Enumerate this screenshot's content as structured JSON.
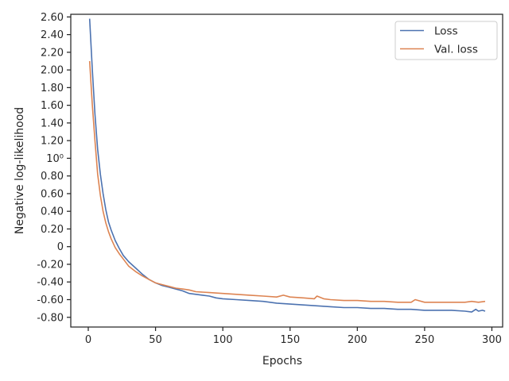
{
  "chart_data": {
    "type": "line",
    "xlabel": "Epochs",
    "ylabel": "Negative log-likelihood",
    "xlim": [
      -13,
      308
    ],
    "ylim": [
      -0.91,
      2.63
    ],
    "grid": false,
    "legend_position": "top-right",
    "x_ticks": [
      {
        "value": 0,
        "label": "0"
      },
      {
        "value": 50,
        "label": "50"
      },
      {
        "value": 100,
        "label": "100"
      },
      {
        "value": 150,
        "label": "150"
      },
      {
        "value": 200,
        "label": "200"
      },
      {
        "value": 250,
        "label": "250"
      },
      {
        "value": 300,
        "label": "300"
      }
    ],
    "y_ticks": [
      {
        "value": -0.8,
        "label": "-0.80"
      },
      {
        "value": -0.6,
        "label": "-0.60"
      },
      {
        "value": -0.4,
        "label": "-0.40"
      },
      {
        "value": -0.2,
        "label": "-0.20"
      },
      {
        "value": 0,
        "label": "0"
      },
      {
        "value": 0.2,
        "label": "0.20"
      },
      {
        "value": 0.4,
        "label": "0.40"
      },
      {
        "value": 0.6,
        "label": "0.60"
      },
      {
        "value": 0.8,
        "label": "0.80"
      },
      {
        "value": 1.0,
        "label": "10⁰"
      },
      {
        "value": 1.2,
        "label": "1.20"
      },
      {
        "value": 1.4,
        "label": "1.40"
      },
      {
        "value": 1.6,
        "label": "1.60"
      },
      {
        "value": 1.8,
        "label": "1.80"
      },
      {
        "value": 2.0,
        "label": "2.00"
      },
      {
        "value": 2.2,
        "label": "2.20"
      },
      {
        "value": 2.4,
        "label": "2.40"
      },
      {
        "value": 2.6,
        "label": "2.60"
      }
    ],
    "series": [
      {
        "name": "Loss",
        "color": "#4c72b0",
        "x": [
          1,
          3,
          5,
          7,
          9,
          11,
          13,
          15,
          17,
          20,
          23,
          26,
          30,
          35,
          40,
          45,
          50,
          55,
          60,
          65,
          70,
          75,
          80,
          85,
          90,
          95,
          100,
          110,
          120,
          130,
          140,
          150,
          160,
          170,
          180,
          190,
          200,
          210,
          220,
          230,
          240,
          250,
          260,
          270,
          280,
          285,
          288,
          290,
          293,
          295
        ],
        "y": [
          2.58,
          2.0,
          1.5,
          1.1,
          0.82,
          0.6,
          0.42,
          0.28,
          0.19,
          0.07,
          -0.02,
          -0.1,
          -0.17,
          -0.24,
          -0.31,
          -0.37,
          -0.41,
          -0.44,
          -0.46,
          -0.48,
          -0.5,
          -0.53,
          -0.54,
          -0.55,
          -0.56,
          -0.58,
          -0.59,
          -0.6,
          -0.61,
          -0.62,
          -0.64,
          -0.65,
          -0.66,
          -0.67,
          -0.68,
          -0.69,
          -0.69,
          -0.7,
          -0.7,
          -0.71,
          -0.71,
          -0.72,
          -0.72,
          -0.72,
          -0.73,
          -0.74,
          -0.71,
          -0.73,
          -0.72,
          -0.73
        ]
      },
      {
        "name": "Val. loss",
        "color": "#dd8452",
        "x": [
          1,
          3,
          5,
          7,
          9,
          11,
          13,
          15,
          17,
          20,
          23,
          26,
          30,
          35,
          40,
          45,
          50,
          55,
          60,
          65,
          70,
          75,
          80,
          90,
          100,
          110,
          120,
          130,
          140,
          145,
          150,
          160,
          168,
          170,
          175,
          180,
          190,
          200,
          210,
          220,
          230,
          240,
          243,
          250,
          260,
          270,
          280,
          285,
          290,
          295
        ],
        "y": [
          2.1,
          1.6,
          1.2,
          0.82,
          0.58,
          0.4,
          0.27,
          0.17,
          0.09,
          -0.01,
          -0.08,
          -0.14,
          -0.22,
          -0.28,
          -0.33,
          -0.37,
          -0.41,
          -0.43,
          -0.45,
          -0.47,
          -0.48,
          -0.49,
          -0.51,
          -0.52,
          -0.53,
          -0.54,
          -0.55,
          -0.56,
          -0.57,
          -0.55,
          -0.57,
          -0.58,
          -0.59,
          -0.56,
          -0.59,
          -0.6,
          -0.61,
          -0.61,
          -0.62,
          -0.62,
          -0.63,
          -0.63,
          -0.6,
          -0.63,
          -0.63,
          -0.63,
          -0.63,
          -0.62,
          -0.63,
          -0.62
        ]
      }
    ]
  }
}
